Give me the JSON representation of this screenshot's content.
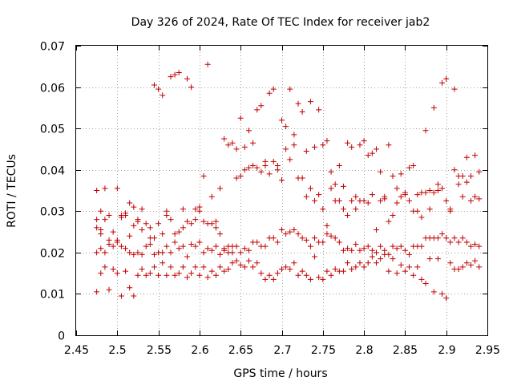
{
  "chart_data": {
    "type": "scatter",
    "title": "Day 326 of 2024, Rate Of TEC Index for receiver jab2",
    "xlabel": "GPS time / hours",
    "ylabel": "ROTI / TECUs",
    "xlim": [
      2.45,
      2.95
    ],
    "ylim": [
      0,
      0.07
    ],
    "xticks": [
      "2.45",
      "2.5",
      "2.55",
      "2.6",
      "2.65",
      "2.7",
      "2.75",
      "2.8",
      "2.85",
      "2.9",
      "2.95"
    ],
    "yticks": [
      "0",
      "0.01",
      "0.02",
      "0.03",
      "0.04",
      "0.05",
      "0.06",
      "0.07"
    ],
    "grid": true,
    "marker": "plus",
    "color": "#c00000",
    "series": [
      {
        "x": [
          2.475,
          2.475,
          2.48,
          2.485,
          2.48,
          2.49,
          2.5,
          2.505,
          2.51,
          2.515,
          2.52,
          2.525,
          2.53,
          2.54,
          2.545,
          2.55,
          2.555,
          2.56,
          2.565,
          2.57,
          2.575,
          2.58,
          2.585,
          2.59,
          2.595,
          2.6,
          2.605,
          2.61,
          2.615,
          2.62,
          2.625,
          2.63,
          2.635,
          2.64,
          2.645,
          2.65,
          2.655,
          2.66,
          2.665,
          2.67,
          2.675,
          2.68,
          2.685,
          2.69,
          2.695,
          2.7,
          2.705,
          2.71,
          2.715,
          2.72,
          2.725,
          2.73,
          2.735,
          2.74,
          2.745,
          2.75,
          2.755,
          2.76,
          2.765,
          2.77,
          2.775,
          2.78,
          2.785,
          2.79,
          2.795,
          2.8,
          2.805,
          2.81,
          2.815,
          2.82,
          2.825,
          2.83,
          2.835,
          2.84,
          2.845,
          2.85,
          2.855,
          2.86,
          2.865,
          2.87,
          2.875,
          2.88,
          2.885,
          2.89,
          2.895,
          2.9,
          2.905,
          2.91,
          2.915,
          2.92,
          2.925,
          2.93,
          2.935,
          2.94,
          2.475,
          2.48,
          2.485,
          2.49,
          2.495,
          2.5,
          2.505,
          2.51,
          2.515,
          2.52,
          2.525,
          2.53,
          2.535,
          2.54,
          2.545,
          2.55,
          2.555,
          2.56,
          2.565,
          2.57,
          2.575,
          2.58,
          2.585,
          2.59,
          2.595,
          2.6,
          2.605,
          2.61,
          2.615,
          2.62,
          2.625,
          2.63,
          2.635,
          2.64,
          2.645,
          2.65,
          2.655,
          2.66,
          2.665,
          2.67,
          2.675,
          2.68,
          2.685,
          2.69,
          2.695,
          2.7,
          2.705,
          2.71,
          2.715,
          2.72,
          2.725,
          2.73,
          2.735,
          2.74,
          2.745,
          2.75,
          2.755,
          2.76,
          2.765,
          2.77,
          2.775,
          2.78,
          2.785,
          2.79,
          2.795,
          2.8,
          2.805,
          2.81,
          2.815,
          2.82,
          2.825,
          2.83,
          2.835,
          2.84,
          2.845,
          2.85,
          2.855,
          2.86,
          2.865,
          2.87,
          2.875,
          2.88,
          2.885,
          2.89,
          2.895,
          2.9,
          2.905,
          2.91,
          2.915,
          2.92,
          2.925,
          2.93,
          2.935,
          2.94,
          2.475,
          2.48,
          2.485,
          2.49,
          2.495,
          2.5,
          2.505,
          2.51,
          2.515,
          2.52,
          2.525,
          2.53,
          2.535,
          2.54,
          2.545,
          2.55,
          2.555,
          2.56,
          2.565,
          2.57,
          2.575,
          2.58,
          2.585,
          2.59,
          2.595,
          2.6,
          2.605,
          2.61,
          2.615,
          2.62,
          2.625,
          2.63,
          2.635,
          2.64,
          2.645,
          2.65,
          2.655,
          2.66,
          2.665,
          2.67,
          2.675,
          2.68,
          2.685,
          2.69,
          2.695,
          2.7,
          2.705,
          2.71,
          2.715,
          2.72,
          2.725,
          2.73,
          2.735,
          2.74,
          2.745,
          2.75,
          2.755,
          2.76,
          2.765,
          2.77,
          2.775,
          2.78,
          2.785,
          2.79,
          2.795,
          2.8,
          2.805,
          2.81,
          2.815,
          2.82,
          2.825,
          2.83,
          2.835,
          2.84,
          2.845,
          2.85,
          2.855,
          2.86,
          2.865,
          2.87,
          2.875,
          2.88,
          2.885,
          2.89,
          2.895,
          2.9,
          2.905,
          2.91,
          2.915,
          2.92,
          2.925,
          2.93,
          2.935,
          2.94,
          2.475,
          2.48,
          2.485,
          2.49,
          2.495,
          2.5,
          2.505,
          2.51,
          2.515,
          2.52,
          2.525,
          2.53,
          2.535,
          2.54,
          2.545,
          2.55,
          2.555,
          2.56,
          2.565,
          2.57,
          2.575,
          2.58,
          2.585,
          2.59,
          2.595,
          2.6,
          2.605,
          2.61,
          2.615,
          2.62,
          2.625,
          2.63,
          2.635,
          2.64,
          2.645,
          2.65,
          2.655,
          2.66,
          2.665,
          2.67,
          2.675,
          2.68,
          2.685,
          2.69,
          2.695,
          2.7,
          2.705,
          2.71,
          2.715,
          2.72,
          2.725,
          2.73,
          2.735,
          2.74,
          2.745,
          2.75,
          2.755,
          2.76,
          2.765,
          2.77,
          2.775,
          2.78,
          2.785,
          2.79,
          2.795,
          2.8,
          2.805,
          2.81,
          2.815,
          2.82,
          2.825,
          2.83,
          2.835,
          2.84,
          2.845,
          2.85,
          2.855,
          2.86,
          2.865,
          2.87,
          2.875,
          2.88,
          2.885,
          2.89,
          2.895,
          2.9,
          2.905,
          2.91,
          2.915,
          2.92,
          2.925,
          2.93,
          2.935,
          2.94
        ],
        "y": [
          0.035,
          0.026,
          0.0255,
          0.0355,
          0.03,
          0.029,
          0.0355,
          0.029,
          0.029,
          0.032,
          0.031,
          0.028,
          0.0305,
          0.026,
          0.0605,
          0.0595,
          0.058,
          0.03,
          0.0625,
          0.063,
          0.0635,
          0.0305,
          0.062,
          0.06,
          0.0305,
          0.031,
          0.0385,
          0.0655,
          0.027,
          0.0275,
          0.0355,
          0.0475,
          0.046,
          0.0465,
          0.045,
          0.0525,
          0.0455,
          0.0495,
          0.0465,
          0.0545,
          0.0555,
          0.042,
          0.0585,
          0.0595,
          0.041,
          0.052,
          0.0505,
          0.0595,
          0.0485,
          0.056,
          0.054,
          0.0445,
          0.0565,
          0.0455,
          0.0545,
          0.046,
          0.047,
          0.0395,
          0.0365,
          0.041,
          0.036,
          0.0465,
          0.0455,
          0.0335,
          0.046,
          0.047,
          0.0435,
          0.044,
          0.045,
          0.0395,
          0.0335,
          0.046,
          0.0385,
          0.032,
          0.039,
          0.034,
          0.0405,
          0.041,
          0.03,
          0.0345,
          0.0495,
          0.035,
          0.055,
          0.0365,
          0.061,
          0.062,
          0.03,
          0.0595,
          0.0385,
          0.0385,
          0.043,
          0.0385,
          0.0435,
          0.0395,
          0.028,
          0.0245,
          0.028,
          0.022,
          0.025,
          0.023,
          0.0285,
          0.0295,
          0.024,
          0.0265,
          0.0275,
          0.0255,
          0.027,
          0.0235,
          0.0235,
          0.027,
          0.0245,
          0.029,
          0.028,
          0.0245,
          0.025,
          0.026,
          0.0275,
          0.027,
          0.028,
          0.03,
          0.0275,
          0.027,
          0.0335,
          0.026,
          0.0245,
          0.0205,
          0.0215,
          0.0215,
          0.038,
          0.0385,
          0.04,
          0.0405,
          0.041,
          0.0405,
          0.0395,
          0.041,
          0.039,
          0.042,
          0.04,
          0.0375,
          0.045,
          0.0425,
          0.046,
          0.038,
          0.038,
          0.0335,
          0.0355,
          0.0325,
          0.034,
          0.0305,
          0.0265,
          0.0355,
          0.0325,
          0.0325,
          0.0305,
          0.029,
          0.0325,
          0.0305,
          0.0325,
          0.0325,
          0.032,
          0.034,
          0.0255,
          0.0325,
          0.033,
          0.0275,
          0.029,
          0.0355,
          0.0335,
          0.0345,
          0.0325,
          0.03,
          0.034,
          0.0285,
          0.0345,
          0.0305,
          0.0345,
          0.035,
          0.0355,
          0.0325,
          0.0305,
          0.04,
          0.0365,
          0.0335,
          0.037,
          0.0325,
          0.0335,
          0.033,
          0.02,
          0.021,
          0.02,
          0.023,
          0.0215,
          0.0225,
          0.0215,
          0.021,
          0.02,
          0.0195,
          0.02,
          0.0195,
          0.0215,
          0.022,
          0.0195,
          0.02,
          0.02,
          0.0215,
          0.02,
          0.0225,
          0.021,
          0.0215,
          0.019,
          0.022,
          0.0215,
          0.0225,
          0.02,
          0.021,
          0.0205,
          0.0215,
          0.0195,
          0.021,
          0.02,
          0.02,
          0.0215,
          0.02,
          0.021,
          0.0205,
          0.0225,
          0.0225,
          0.0215,
          0.0215,
          0.0235,
          0.0235,
          0.0225,
          0.0255,
          0.0245,
          0.025,
          0.0255,
          0.0245,
          0.0235,
          0.023,
          0.0215,
          0.0235,
          0.0225,
          0.0225,
          0.0245,
          0.024,
          0.0235,
          0.0225,
          0.0205,
          0.021,
          0.0205,
          0.022,
          0.0205,
          0.021,
          0.0215,
          0.0205,
          0.02,
          0.0215,
          0.0205,
          0.0195,
          0.0215,
          0.021,
          0.0215,
          0.0205,
          0.0195,
          0.0215,
          0.0215,
          0.0215,
          0.0235,
          0.0235,
          0.0235,
          0.0235,
          0.0245,
          0.0235,
          0.0225,
          0.0235,
          0.0225,
          0.0235,
          0.0225,
          0.0215,
          0.022,
          0.0215,
          0.0105,
          0.015,
          0.0165,
          0.011,
          0.016,
          0.015,
          0.0095,
          0.0155,
          0.0115,
          0.0095,
          0.0145,
          0.016,
          0.0145,
          0.015,
          0.0165,
          0.0145,
          0.0175,
          0.0145,
          0.0165,
          0.0145,
          0.015,
          0.0165,
          0.014,
          0.015,
          0.0165,
          0.0145,
          0.0165,
          0.014,
          0.0155,
          0.0145,
          0.0165,
          0.0155,
          0.016,
          0.0175,
          0.018,
          0.017,
          0.0165,
          0.018,
          0.0165,
          0.0175,
          0.015,
          0.0135,
          0.0145,
          0.0135,
          0.015,
          0.016,
          0.0165,
          0.016,
          0.0175,
          0.0145,
          0.0155,
          0.0145,
          0.0135,
          0.019,
          0.014,
          0.0135,
          0.0155,
          0.0145,
          0.016,
          0.0155,
          0.0155,
          0.0175,
          0.016,
          0.0165,
          0.0175,
          0.0165,
          0.0175,
          0.019,
          0.0175,
          0.0185,
          0.0195,
          0.0155,
          0.0185,
          0.015,
          0.017,
          0.0155,
          0.0165,
          0.0145,
          0.0165,
          0.0135,
          0.0125,
          0.0185,
          0.0105,
          0.0185,
          0.01,
          0.009,
          0.0175,
          0.016,
          0.016,
          0.0165,
          0.0175,
          0.017,
          0.018,
          0.0165
        ]
      }
    ]
  }
}
